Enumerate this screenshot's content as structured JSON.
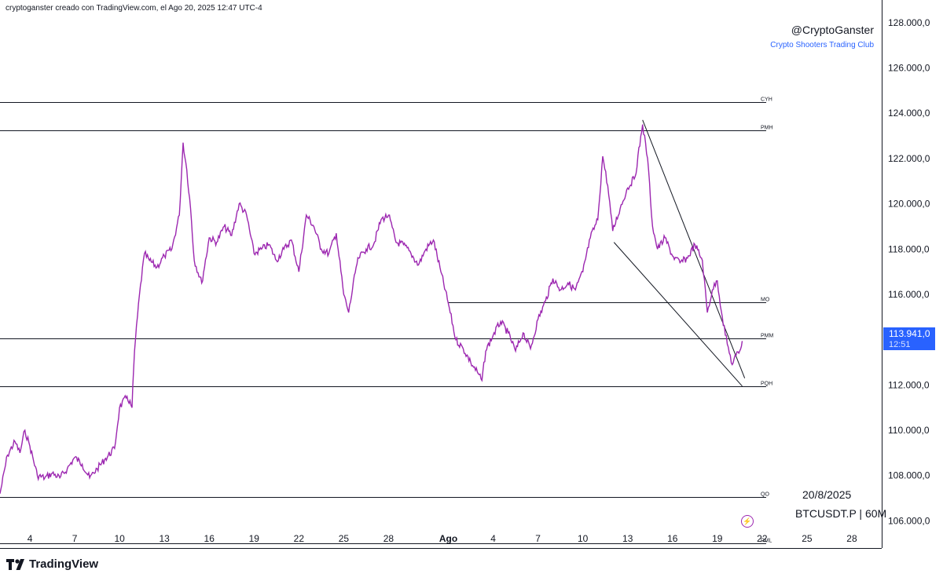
{
  "header": {
    "attribution": "cryptoganster creado con TradingView.com, el Ago 20, 2025 12:47 UTC-4"
  },
  "branding": {
    "handle": "@CryptoGanster",
    "club": "Crypto Shooters Trading Club",
    "logo_text": "TradingView"
  },
  "watermark": {
    "date": "20/8/2025",
    "symbol": "BTCUSDT.P | 60M"
  },
  "price_tag": {
    "price": "113.941,0",
    "countdown": "12:51",
    "color": "#2962ff"
  },
  "colors": {
    "series": "#9c27b0",
    "lines": "#131722",
    "accent": "#2962ff"
  },
  "icons": [
    "tradingview-logo-icon",
    "lightning-bolt-icon"
  ],
  "chart_data": {
    "type": "line",
    "symbol": "BTCUSDT.P",
    "timeframe": "60M",
    "x_range": [
      "2025-07-02",
      "2025-08-30"
    ],
    "ylim": [
      104800,
      129000
    ],
    "y_ticks": [
      "106.000,0",
      "108.000,0",
      "110.000,0",
      "112.000,0",
      "114.000,0",
      "116.000,0",
      "118.000,0",
      "120.000,0",
      "122.000,0",
      "124.000,0",
      "126.000,0",
      "128.000,0"
    ],
    "y_tick_values": [
      106000,
      108000,
      110000,
      112000,
      114000,
      116000,
      118000,
      120000,
      122000,
      124000,
      126000,
      128000
    ],
    "x_ticks": [
      {
        "label": "4",
        "date": "2025-07-04"
      },
      {
        "label": "7",
        "date": "2025-07-07"
      },
      {
        "label": "10",
        "date": "2025-07-10"
      },
      {
        "label": "13",
        "date": "2025-07-13"
      },
      {
        "label": "16",
        "date": "2025-07-16"
      },
      {
        "label": "19",
        "date": "2025-07-19"
      },
      {
        "label": "22",
        "date": "2025-07-22"
      },
      {
        "label": "25",
        "date": "2025-07-25"
      },
      {
        "label": "28",
        "date": "2025-07-28"
      },
      {
        "label": "Ago",
        "date": "2025-08-01"
      },
      {
        "label": "4",
        "date": "2025-08-04"
      },
      {
        "label": "7",
        "date": "2025-08-07"
      },
      {
        "label": "10",
        "date": "2025-08-10"
      },
      {
        "label": "13",
        "date": "2025-08-13"
      },
      {
        "label": "16",
        "date": "2025-08-16"
      },
      {
        "label": "19",
        "date": "2025-08-19"
      },
      {
        "label": "22",
        "date": "2025-08-22"
      },
      {
        "label": "25",
        "date": "2025-08-25"
      },
      {
        "label": "28",
        "date": "2025-08-28"
      }
    ],
    "levels": [
      {
        "label": "CYH",
        "value": 124500,
        "from": "2025-07-02"
      },
      {
        "label": "PMH",
        "value": 123250,
        "from": "2025-07-02"
      },
      {
        "label": "MO",
        "value": 115650,
        "from": "2025-08-01"
      },
      {
        "label": "PMM",
        "value": 114050,
        "from": "2025-07-02"
      },
      {
        "label": "PQH",
        "value": 111950,
        "from": "2025-07-02"
      },
      {
        "label": "QO",
        "value": 107050,
        "from": "2025-07-02"
      },
      {
        "label": "PML",
        "value": 105000,
        "from": "2025-07-02"
      }
    ],
    "wedge": [
      {
        "from": {
          "date": "2025-08-14 00:00",
          "value": 123700
        },
        "to": {
          "date": "2025-08-20 20:00",
          "value": 112300
        }
      },
      {
        "from": {
          "date": "2025-08-12 02:00",
          "value": 118300
        },
        "to": {
          "date": "2025-08-20 16:00",
          "value": 111950
        }
      }
    ],
    "series": [
      {
        "points": [
          [
            "2025-07-02 00:00",
            107200
          ],
          [
            "2025-07-02 12:00",
            108900
          ],
          [
            "2025-07-03 00:00",
            109500
          ],
          [
            "2025-07-03 08:00",
            109000
          ],
          [
            "2025-07-03 16:00",
            110000
          ],
          [
            "2025-07-04 00:00",
            109300
          ],
          [
            "2025-07-04 12:00",
            108000
          ],
          [
            "2025-07-05 00:00",
            107900
          ],
          [
            "2025-07-05 12:00",
            108100
          ],
          [
            "2025-07-06 00:00",
            107900
          ],
          [
            "2025-07-06 12:00",
            108300
          ],
          [
            "2025-07-07 00:00",
            108800
          ],
          [
            "2025-07-07 12:00",
            108500
          ],
          [
            "2025-07-08 00:00",
            107900
          ],
          [
            "2025-07-08 12:00",
            108300
          ],
          [
            "2025-07-09 00:00",
            108700
          ],
          [
            "2025-07-09 16:00",
            109200
          ],
          [
            "2025-07-10 00:00",
            111000
          ],
          [
            "2025-07-10 12:00",
            111500
          ],
          [
            "2025-07-10 20:00",
            111000
          ],
          [
            "2025-07-11 00:00",
            113500
          ],
          [
            "2025-07-11 08:00",
            116000
          ],
          [
            "2025-07-11 16:00",
            117800
          ],
          [
            "2025-07-12 00:00",
            117500
          ],
          [
            "2025-07-12 12:00",
            117200
          ],
          [
            "2025-07-13 00:00",
            117700
          ],
          [
            "2025-07-13 12:00",
            118000
          ],
          [
            "2025-07-14 00:00",
            119500
          ],
          [
            "2025-07-14 06:00",
            122700
          ],
          [
            "2025-07-14 12:00",
            121500
          ],
          [
            "2025-07-14 18:00",
            119800
          ],
          [
            "2025-07-15 00:00",
            117500
          ],
          [
            "2025-07-15 12:00",
            116500
          ],
          [
            "2025-07-16 00:00",
            118500
          ],
          [
            "2025-07-16 12:00",
            118300
          ],
          [
            "2025-07-17 00:00",
            119000
          ],
          [
            "2025-07-17 12:00",
            118600
          ],
          [
            "2025-07-18 00:00",
            120000
          ],
          [
            "2025-07-18 12:00",
            119500
          ],
          [
            "2025-07-19 00:00",
            117800
          ],
          [
            "2025-07-19 12:00",
            118000
          ],
          [
            "2025-07-20 00:00",
            118200
          ],
          [
            "2025-07-20 12:00",
            117500
          ],
          [
            "2025-07-21 00:00",
            118000
          ],
          [
            "2025-07-21 12:00",
            118400
          ],
          [
            "2025-07-22 00:00",
            117000
          ],
          [
            "2025-07-22 12:00",
            119500
          ],
          [
            "2025-07-23 00:00",
            119000
          ],
          [
            "2025-07-23 12:00",
            118000
          ],
          [
            "2025-07-24 00:00",
            117800
          ],
          [
            "2025-07-24 12:00",
            118700
          ],
          [
            "2025-07-25 00:00",
            116000
          ],
          [
            "2025-07-25 08:00",
            115200
          ],
          [
            "2025-07-25 20:00",
            117200
          ],
          [
            "2025-07-26 00:00",
            117600
          ],
          [
            "2025-07-26 12:00",
            118000
          ],
          [
            "2025-07-27 00:00",
            118200
          ],
          [
            "2025-07-27 12:00",
            119300
          ],
          [
            "2025-07-28 00:00",
            119500
          ],
          [
            "2025-07-28 12:00",
            118300
          ],
          [
            "2025-07-29 00:00",
            118200
          ],
          [
            "2025-07-29 12:00",
            117800
          ],
          [
            "2025-07-30 00:00",
            117300
          ],
          [
            "2025-07-30 12:00",
            118000
          ],
          [
            "2025-07-31 00:00",
            118400
          ],
          [
            "2025-07-31 12:00",
            117000
          ],
          [
            "2025-08-01 00:00",
            115600
          ],
          [
            "2025-08-01 12:00",
            114000
          ],
          [
            "2025-08-02 00:00",
            113600
          ],
          [
            "2025-08-02 12:00",
            113000
          ],
          [
            "2025-08-03 00:00",
            112500
          ],
          [
            "2025-08-03 06:00",
            112200
          ],
          [
            "2025-08-03 12:00",
            113500
          ],
          [
            "2025-08-04 00:00",
            114200
          ],
          [
            "2025-08-04 12:00",
            114800
          ],
          [
            "2025-08-05 00:00",
            114300
          ],
          [
            "2025-08-05 12:00",
            113500
          ],
          [
            "2025-08-06 00:00",
            114300
          ],
          [
            "2025-08-06 12:00",
            113600
          ],
          [
            "2025-08-07 00:00",
            114900
          ],
          [
            "2025-08-07 12:00",
            115700
          ],
          [
            "2025-08-08 00:00",
            116700
          ],
          [
            "2025-08-08 12:00",
            116200
          ],
          [
            "2025-08-09 00:00",
            116500
          ],
          [
            "2025-08-09 12:00",
            116200
          ],
          [
            "2025-08-10 00:00",
            117000
          ],
          [
            "2025-08-10 12:00",
            118500
          ],
          [
            "2025-08-11 00:00",
            119300
          ],
          [
            "2025-08-11 08:00",
            122100
          ],
          [
            "2025-08-11 16:00",
            120800
          ],
          [
            "2025-08-12 00:00",
            118800
          ],
          [
            "2025-08-12 12:00",
            119800
          ],
          [
            "2025-08-13 00:00",
            120700
          ],
          [
            "2025-08-13 12:00",
            121200
          ],
          [
            "2025-08-14 00:00",
            123500
          ],
          [
            "2025-08-14 08:00",
            122000
          ],
          [
            "2025-08-14 16:00",
            119000
          ],
          [
            "2025-08-15 00:00",
            118000
          ],
          [
            "2025-08-15 12:00",
            118500
          ],
          [
            "2025-08-16 00:00",
            117700
          ],
          [
            "2025-08-16 12:00",
            117400
          ],
          [
            "2025-08-17 00:00",
            117600
          ],
          [
            "2025-08-17 12:00",
            118200
          ],
          [
            "2025-08-18 00:00",
            117500
          ],
          [
            "2025-08-18 08:00",
            115200
          ],
          [
            "2025-08-18 16:00",
            116200
          ],
          [
            "2025-08-19 00:00",
            116600
          ],
          [
            "2025-08-19 08:00",
            115000
          ],
          [
            "2025-08-19 16:00",
            113800
          ],
          [
            "2025-08-20 00:00",
            112900
          ],
          [
            "2025-08-20 06:00",
            113300
          ],
          [
            "2025-08-20 12:00",
            113500
          ],
          [
            "2025-08-20 16:00",
            113941
          ]
        ]
      }
    ]
  }
}
